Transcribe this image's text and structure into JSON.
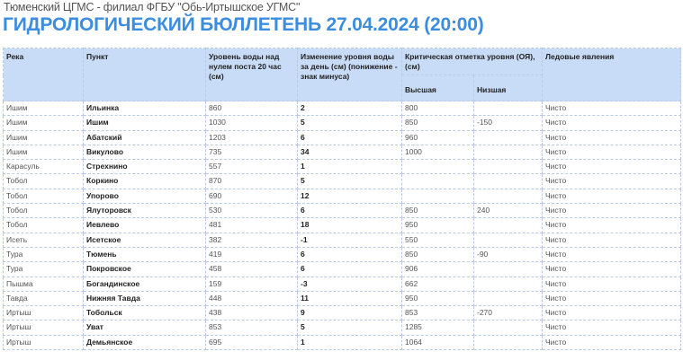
{
  "header": {
    "subtitle": "Тюменский ЦГМС - филиал ФГБУ \"Обь-Иртышское УГМС\"",
    "title": "ГИДРОЛОГИЧЕСКИЙ БЮЛЛЕТЕНЬ 27.04.2024 (20:00)"
  },
  "colors": {
    "title": "#3b8de0",
    "header_bg": "#c9dcf7"
  },
  "table": {
    "columns": {
      "river": "Река",
      "point": "Пункт",
      "level": "Уровень воды над нулем поста 20 час (см)",
      "change": "Изменение уровня воды за день (см) (понижение - знак минуса)",
      "critical": "Критическая отметка уровня (ОЯ), (см)",
      "high": "Высшая",
      "low": "Низшая",
      "ice": "Ледовые явления"
    },
    "rows": [
      [
        "Ишим",
        "Ильинка",
        "860",
        "2",
        "800",
        "",
        "Чисто"
      ],
      [
        "Ишим",
        "Ишим",
        "1030",
        "5",
        "850",
        "-150",
        "Чисто"
      ],
      [
        "Ишим",
        "Абатский",
        "1203",
        "6",
        "960",
        "",
        "Чисто"
      ],
      [
        "Ишим",
        "Викулово",
        "735",
        "34",
        "1000",
        "",
        "Чисто"
      ],
      [
        "Карасуль",
        "Стрехнино",
        "557",
        "1",
        "",
        "",
        "Чисто"
      ],
      [
        "Тобол",
        "Коркино",
        "870",
        "5",
        "",
        "",
        "Чисто"
      ],
      [
        "Тобол",
        "Упорово",
        "690",
        "12",
        "",
        "",
        "Чисто"
      ],
      [
        "Тобол",
        "Ялуторовск",
        "530",
        "6",
        "850",
        "240",
        "Чисто"
      ],
      [
        "Тобол",
        "Иевлево",
        "481",
        "18",
        "950",
        "",
        "Чисто"
      ],
      [
        "Исеть",
        "Исетское",
        "382",
        "-1",
        "550",
        "",
        "Чисто"
      ],
      [
        "Тура",
        "Тюмень",
        "419",
        "6",
        "850",
        "-90",
        "Чисто"
      ],
      [
        "Тура",
        "Покровское",
        "458",
        "6",
        "906",
        "",
        "Чисто"
      ],
      [
        "Пышма",
        "Богандинское",
        "159",
        "-3",
        "662",
        "",
        "Чисто"
      ],
      [
        "Тавда",
        "Нижняя Тавда",
        "448",
        "11",
        "950",
        "",
        "Чисто"
      ],
      [
        "Иртыш",
        "Тобольск",
        "438",
        "9",
        "853",
        "-270",
        "Чисто"
      ],
      [
        "Иртыш",
        "Уват",
        "853",
        "5",
        "1285",
        "",
        "Чисто"
      ],
      [
        "Иртыш",
        "Демьянское",
        "695",
        "1",
        "1064",
        "",
        "Чисто"
      ]
    ]
  }
}
